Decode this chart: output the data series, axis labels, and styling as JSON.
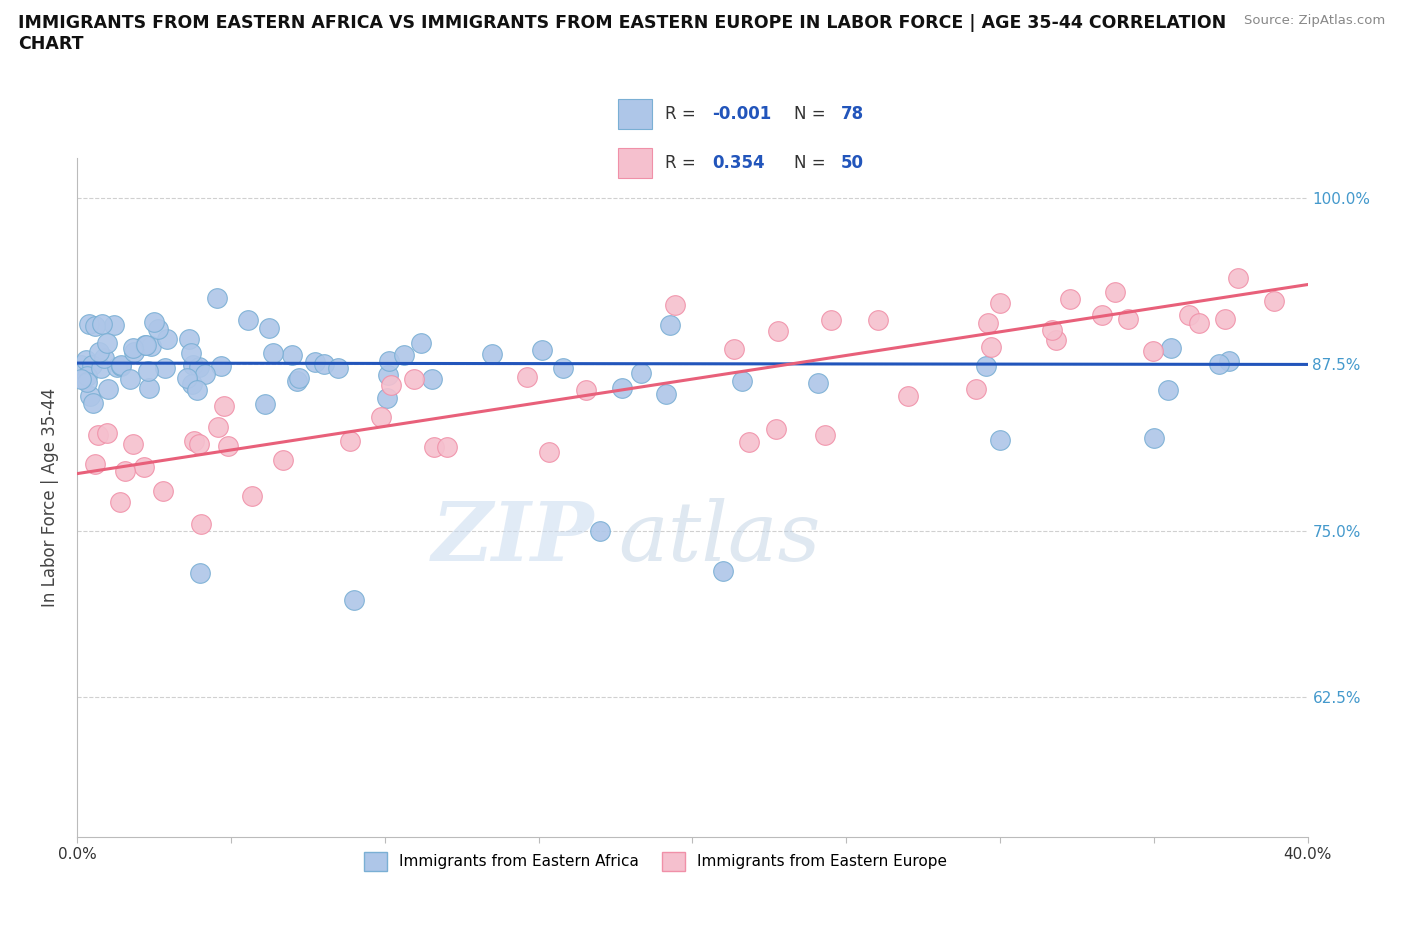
{
  "title": "IMMIGRANTS FROM EASTERN AFRICA VS IMMIGRANTS FROM EASTERN EUROPE IN LABOR FORCE | AGE 35-44 CORRELATION\nCHART",
  "source_text": "Source: ZipAtlas.com",
  "ylabel": "In Labor Force | Age 35-44",
  "legend_label1": "Immigrants from Eastern Africa",
  "legend_label2": "Immigrants from Eastern Europe",
  "R1": "-0.001",
  "N1": "78",
  "R2": "0.354",
  "N2": "50",
  "color1": "#aec6e8",
  "color1_edge": "#7aafd4",
  "color2": "#f5c0ce",
  "color2_edge": "#f090a8",
  "line1_color": "#2255bb",
  "line2_color": "#e8607a",
  "xmin": 0.0,
  "xmax": 0.4,
  "ymin": 0.52,
  "ymax": 1.03,
  "yticks": [
    0.625,
    0.75,
    0.875,
    1.0
  ],
  "ytick_labels": [
    "62.5%",
    "75.0%",
    "87.5%",
    "100.0%"
  ],
  "xticks": [
    0.0,
    0.05,
    0.1,
    0.15,
    0.2,
    0.25,
    0.3,
    0.35,
    0.4
  ],
  "xtick_labels": [
    "0.0%",
    "",
    "",
    "",
    "",
    "",
    "",
    "",
    "40.0%"
  ],
  "grid_color": "#d0d0d0",
  "background_color": "#ffffff",
  "watermark_text": "ZIPatlas",
  "blue_line_y0": 0.876,
  "blue_line_y1": 0.875,
  "pink_line_y0": 0.793,
  "pink_line_y1": 0.935
}
